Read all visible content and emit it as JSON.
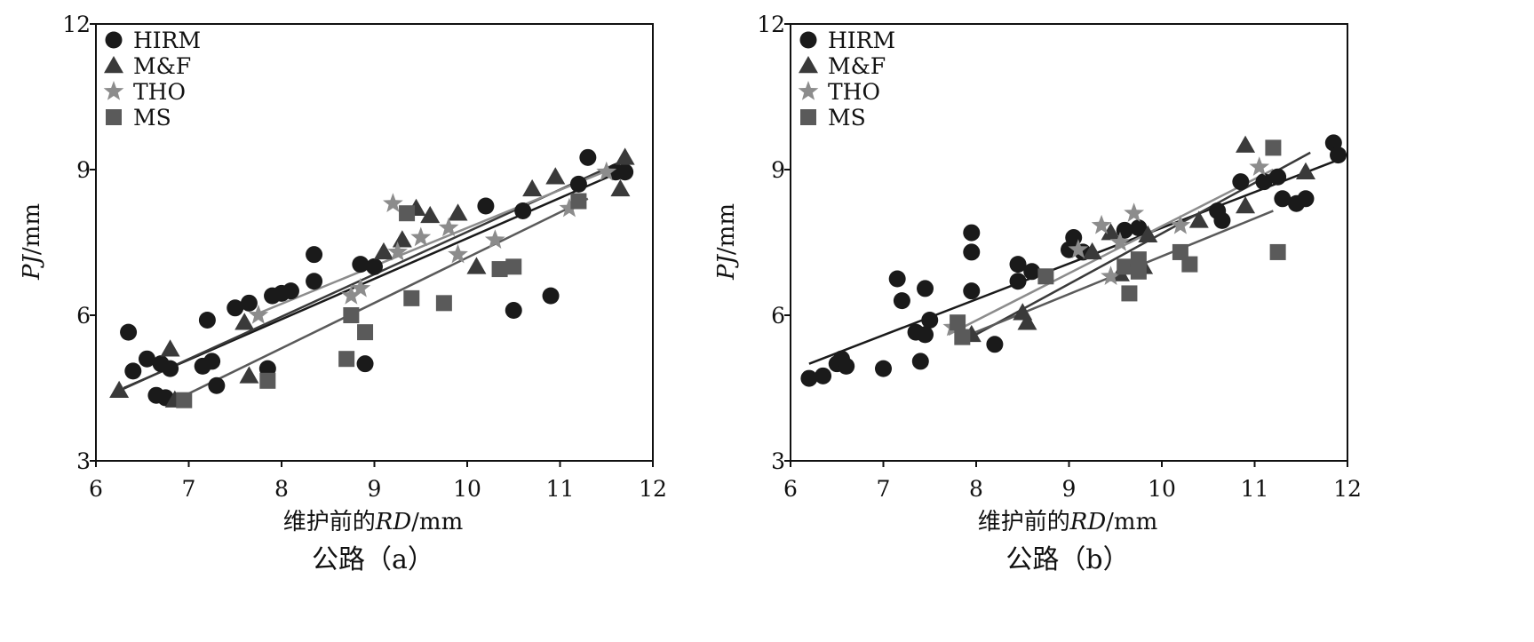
{
  "chart_data": [
    {
      "type": "scatter",
      "panel": "a",
      "xlabel_prefix": "维护前的",
      "xlabel_italic": "RD",
      "xlabel_suffix": "/mm",
      "ylabel_italic": "PJ",
      "ylabel_suffix": "/mm",
      "caption": "公路（a）",
      "xlim": [
        6,
        12
      ],
      "ylim": [
        3,
        12
      ],
      "xticks": [
        "6",
        "7",
        "8",
        "9",
        "10",
        "11",
        "12"
      ],
      "yticks": [
        "3",
        "6",
        "9",
        "12"
      ],
      "legend": [
        "HIRM",
        "M&F",
        "THO",
        "MS"
      ],
      "legend_position": "top-left",
      "series": [
        {
          "name": "HIRM",
          "marker": "circle",
          "color": "#1a1a1a",
          "points": [
            [
              6.35,
              5.65
            ],
            [
              6.4,
              4.85
            ],
            [
              6.55,
              5.1
            ],
            [
              6.65,
              4.35
            ],
            [
              6.7,
              5.0
            ],
            [
              6.75,
              4.3
            ],
            [
              6.8,
              4.9
            ],
            [
              7.15,
              4.95
            ],
            [
              7.2,
              5.9
            ],
            [
              7.25,
              5.05
            ],
            [
              7.3,
              4.55
            ],
            [
              7.5,
              6.15
            ],
            [
              7.65,
              6.25
            ],
            [
              7.85,
              4.9
            ],
            [
              7.9,
              6.4
            ],
            [
              8.0,
              6.45
            ],
            [
              8.1,
              6.5
            ],
            [
              8.35,
              6.7
            ],
            [
              8.35,
              7.25
            ],
            [
              8.85,
              7.05
            ],
            [
              8.9,
              5.0
            ],
            [
              9.0,
              7.0
            ],
            [
              10.2,
              8.25
            ],
            [
              10.5,
              6.1
            ],
            [
              10.6,
              8.15
            ],
            [
              10.9,
              6.4
            ],
            [
              11.2,
              8.7
            ],
            [
              11.3,
              9.25
            ],
            [
              11.6,
              8.95
            ],
            [
              11.7,
              8.95
            ]
          ],
          "fit": [
            [
              6.3,
              4.5
            ],
            [
              11.7,
              9.0
            ]
          ]
        },
        {
          "name": "M&F",
          "marker": "triangle",
          "color": "#3a3a3a",
          "points": [
            [
              6.25,
              4.45
            ],
            [
              6.8,
              5.3
            ],
            [
              6.85,
              4.25
            ],
            [
              7.6,
              5.85
            ],
            [
              7.65,
              4.75
            ],
            [
              9.1,
              7.3
            ],
            [
              9.3,
              7.55
            ],
            [
              9.45,
              8.2
            ],
            [
              9.6,
              8.05
            ],
            [
              9.9,
              8.1
            ],
            [
              10.1,
              7.0
            ],
            [
              10.7,
              8.6
            ],
            [
              10.95,
              8.85
            ],
            [
              11.7,
              9.25
            ],
            [
              11.65,
              8.6
            ]
          ],
          "fit": [
            [
              6.2,
              4.4
            ],
            [
              11.7,
              9.2
            ]
          ]
        },
        {
          "name": "THO",
          "marker": "star",
          "color": "#8c8c8c",
          "points": [
            [
              7.75,
              6.0
            ],
            [
              8.75,
              6.4
            ],
            [
              8.85,
              6.55
            ],
            [
              9.2,
              8.3
            ],
            [
              9.25,
              7.3
            ],
            [
              9.5,
              7.6
            ],
            [
              9.8,
              7.8
            ],
            [
              9.9,
              7.25
            ],
            [
              10.3,
              7.55
            ],
            [
              11.1,
              8.2
            ],
            [
              11.5,
              8.95
            ]
          ],
          "fit": [
            [
              7.7,
              6.0
            ],
            [
              11.6,
              9.05
            ]
          ]
        },
        {
          "name": "MS",
          "marker": "square",
          "color": "#5a5a5a",
          "points": [
            [
              6.95,
              4.25
            ],
            [
              7.85,
              4.65
            ],
            [
              8.7,
              5.1
            ],
            [
              8.75,
              6.0
            ],
            [
              8.9,
              5.65
            ],
            [
              9.35,
              8.1
            ],
            [
              9.4,
              6.35
            ],
            [
              9.75,
              6.25
            ],
            [
              10.35,
              6.95
            ],
            [
              10.5,
              7.0
            ],
            [
              11.2,
              8.35
            ]
          ],
          "fit": [
            [
              6.8,
              4.2
            ],
            [
              11.3,
              8.4
            ]
          ]
        }
      ]
    },
    {
      "type": "scatter",
      "panel": "b",
      "xlabel_prefix": "维护前的",
      "xlabel_italic": "RD",
      "xlabel_suffix": "/mm",
      "ylabel_italic": "PJ",
      "ylabel_suffix": "/mm",
      "caption": "公路（b）",
      "xlim": [
        6,
        12
      ],
      "ylim": [
        3,
        12
      ],
      "xticks": [
        "6",
        "7",
        "8",
        "9",
        "10",
        "11",
        "12"
      ],
      "yticks": [
        "3",
        "6",
        "9",
        "12"
      ],
      "legend": [
        "HIRM",
        "M&F",
        "THO",
        "MS"
      ],
      "legend_position": "top-left",
      "series": [
        {
          "name": "HIRM",
          "marker": "circle",
          "color": "#1a1a1a",
          "points": [
            [
              6.2,
              4.7
            ],
            [
              6.35,
              4.75
            ],
            [
              6.5,
              5.0
            ],
            [
              6.55,
              5.1
            ],
            [
              6.6,
              4.95
            ],
            [
              7.0,
              4.9
            ],
            [
              7.15,
              6.75
            ],
            [
              7.2,
              6.3
            ],
            [
              7.35,
              5.65
            ],
            [
              7.45,
              6.55
            ],
            [
              7.5,
              5.9
            ],
            [
              7.45,
              5.6
            ],
            [
              7.4,
              5.05
            ],
            [
              7.95,
              7.7
            ],
            [
              7.95,
              7.3
            ],
            [
              7.95,
              6.5
            ],
            [
              8.2,
              5.4
            ],
            [
              8.45,
              7.05
            ],
            [
              8.45,
              6.7
            ],
            [
              8.6,
              6.9
            ],
            [
              9.0,
              7.35
            ],
            [
              9.05,
              7.6
            ],
            [
              9.15,
              7.3
            ],
            [
              9.6,
              7.75
            ],
            [
              9.75,
              7.8
            ],
            [
              10.6,
              8.15
            ],
            [
              10.65,
              7.95
            ],
            [
              10.85,
              8.75
            ],
            [
              11.1,
              8.75
            ],
            [
              11.25,
              8.85
            ],
            [
              11.3,
              8.4
            ],
            [
              11.45,
              8.3
            ],
            [
              11.55,
              8.4
            ],
            [
              11.85,
              9.55
            ],
            [
              11.9,
              9.3
            ]
          ],
          "fit": [
            [
              6.2,
              5.0
            ],
            [
              11.9,
              9.2
            ]
          ]
        },
        {
          "name": "M&F",
          "marker": "triangle",
          "color": "#3a3a3a",
          "points": [
            [
              7.95,
              5.6
            ],
            [
              8.5,
              6.05
            ],
            [
              8.55,
              5.85
            ],
            [
              9.25,
              7.3
            ],
            [
              9.45,
              7.7
            ],
            [
              9.55,
              6.85
            ],
            [
              9.8,
              7.0
            ],
            [
              9.85,
              7.65
            ],
            [
              10.4,
              7.95
            ],
            [
              10.9,
              9.5
            ],
            [
              10.9,
              8.25
            ],
            [
              11.55,
              8.95
            ]
          ],
          "fit": [
            [
              7.9,
              5.5
            ],
            [
              11.6,
              9.35
            ]
          ]
        },
        {
          "name": "THO",
          "marker": "star",
          "color": "#8c8c8c",
          "points": [
            [
              7.75,
              5.75
            ],
            [
              9.1,
              7.35
            ],
            [
              9.35,
              7.85
            ],
            [
              9.45,
              6.8
            ],
            [
              9.55,
              7.5
            ],
            [
              9.7,
              8.1
            ],
            [
              10.2,
              7.85
            ],
            [
              11.05,
              9.05
            ]
          ],
          "fit": [
            [
              7.7,
              5.6
            ],
            [
              11.2,
              9.0
            ]
          ]
        },
        {
          "name": "MS",
          "marker": "square",
          "color": "#5a5a5a",
          "points": [
            [
              7.8,
              5.85
            ],
            [
              7.85,
              5.55
            ],
            [
              8.75,
              6.8
            ],
            [
              9.6,
              7.0
            ],
            [
              9.65,
              6.45
            ],
            [
              9.75,
              7.15
            ],
            [
              9.75,
              6.9
            ],
            [
              10.2,
              7.3
            ],
            [
              10.3,
              7.05
            ],
            [
              11.2,
              9.45
            ],
            [
              11.25,
              7.3
            ]
          ],
          "fit": [
            [
              7.8,
              5.5
            ],
            [
              11.2,
              8.15
            ]
          ]
        }
      ]
    }
  ]
}
